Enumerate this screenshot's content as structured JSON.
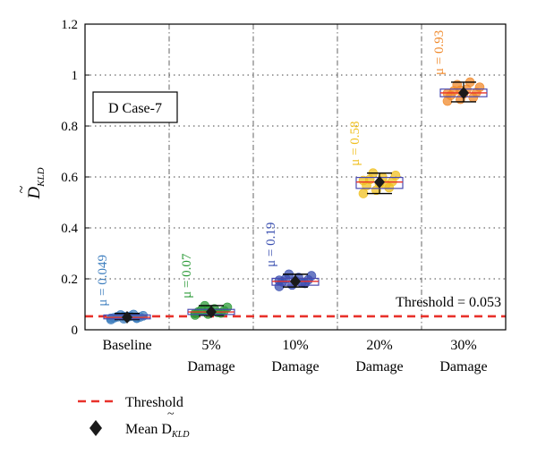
{
  "chart_data": {
    "type": "box",
    "title": "",
    "ylabel_main": "D",
    "ylabel_sub": "KLD",
    "ylim": [
      0,
      1.2
    ],
    "yticks": [
      "0",
      "0.2",
      "0.4",
      "0.6",
      "0.8",
      "1",
      "1.2"
    ],
    "grid": "dotted",
    "case_label": "D Case-7",
    "threshold": {
      "value": 0.053,
      "label": "Threshold = 0.053",
      "color": "#e8312a"
    },
    "categories": [
      {
        "line1": "Baseline",
        "line2": "",
        "color": "#3f7fbf",
        "mu_text": "μ = 0.049",
        "mean": 0.049,
        "q1": 0.043,
        "median": 0.049,
        "q3": 0.058,
        "whisker_low": 0.04,
        "whisker_high": 0.064,
        "points": [
          0.04,
          0.043,
          0.045,
          0.047,
          0.049,
          0.05,
          0.051,
          0.053,
          0.055,
          0.058,
          0.06,
          0.045,
          0.052,
          0.048
        ]
      },
      {
        "line1": "5%",
        "line2": "Damage",
        "color": "#2e9b3a",
        "mu_text": "μ = 0.07",
        "mean": 0.07,
        "q1": 0.06,
        "median": 0.07,
        "q3": 0.08,
        "whisker_low": 0.057,
        "whisker_high": 0.095,
        "points": [
          0.058,
          0.062,
          0.066,
          0.07,
          0.072,
          0.075,
          0.078,
          0.082,
          0.088,
          0.094,
          0.068,
          0.064,
          0.076
        ]
      },
      {
        "line1": "10%",
        "line2": "Damage",
        "color": "#3a4fb0",
        "mu_text": "μ = 0.19",
        "mean": 0.19,
        "q1": 0.175,
        "median": 0.19,
        "q3": 0.202,
        "whisker_low": 0.168,
        "whisker_high": 0.218,
        "points": [
          0.17,
          0.176,
          0.182,
          0.188,
          0.192,
          0.196,
          0.2,
          0.205,
          0.212,
          0.218,
          0.185,
          0.194
        ]
      },
      {
        "line1": "20%",
        "line2": "Damage",
        "color": "#f0c020",
        "mu_text": "μ = 0.58",
        "mean": 0.58,
        "q1": 0.555,
        "median": 0.58,
        "q3": 0.598,
        "whisker_low": 0.535,
        "whisker_high": 0.615,
        "points": [
          0.535,
          0.548,
          0.558,
          0.566,
          0.574,
          0.582,
          0.59,
          0.598,
          0.606,
          0.615,
          0.57,
          0.586
        ]
      },
      {
        "line1": "30%",
        "line2": "Damage",
        "color": "#f08a2c",
        "mu_text": "μ = 0.93",
        "mean": 0.93,
        "q1": 0.915,
        "median": 0.93,
        "q3": 0.945,
        "whisker_low": 0.895,
        "whisker_high": 0.972,
        "points": [
          0.898,
          0.905,
          0.912,
          0.92,
          0.926,
          0.932,
          0.938,
          0.944,
          0.952,
          0.962,
          0.972,
          0.928,
          0.94
        ]
      }
    ],
    "legend": {
      "placement": "bottom-left",
      "threshold_label": "Threshold",
      "mean_label_main": "Mean D",
      "mean_label_sub": "KLD"
    }
  }
}
